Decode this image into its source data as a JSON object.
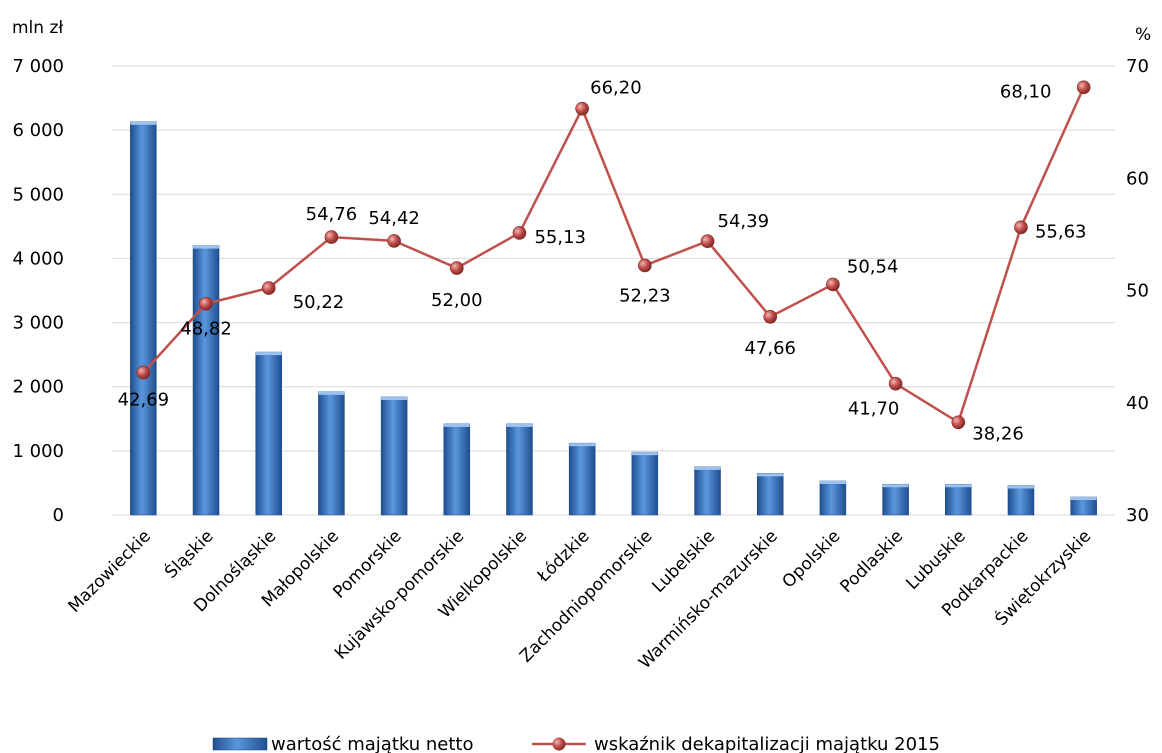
{
  "chart_data": {
    "type": "bar",
    "left_unit": "mln zł",
    "right_unit": "%",
    "categories": [
      "Mazowieckie",
      "Śląskie",
      "Dolnośląskie",
      "Małopolskie",
      "Pomorskie",
      "Kujawsko-pomorskie",
      "Wielkopolskie",
      "Łódzkie",
      "Zachodniopomorskie",
      "Lubelskie",
      "Warmińsko-mazurskie",
      "Opolskie",
      "Podlaskie",
      "Lubuskie",
      "Podkarpackie",
      "Świętokrzyskie"
    ],
    "series": [
      {
        "name": "wartość majątku netto",
        "type": "bar",
        "axis": "left",
        "color": "#2e6fba",
        "values": [
          6130,
          4200,
          2540,
          1920,
          1840,
          1420,
          1420,
          1120,
          980,
          750,
          650,
          530,
          480,
          480,
          460,
          280
        ]
      },
      {
        "name": "wskaźnik dekapitalizacji majątku 2015",
        "type": "line",
        "axis": "right",
        "color": "#c0504d",
        "values": [
          42.69,
          48.82,
          50.22,
          54.76,
          54.42,
          52.0,
          55.13,
          66.2,
          52.23,
          54.39,
          47.66,
          50.54,
          41.7,
          38.26,
          55.63,
          68.1
        ],
        "labels": [
          "42,69",
          "48,82",
          "50,22",
          "54,76",
          "54,42",
          "52,00",
          "55,13",
          "66,20",
          "52,23",
          "54,39",
          "47,66",
          "50,54",
          "41,70",
          "38,26",
          "55,63",
          "68,10"
        ]
      }
    ],
    "y_left": {
      "min": 0,
      "max": 7000,
      "ticks": [
        0,
        1000,
        2000,
        3000,
        4000,
        5000,
        6000,
        7000
      ],
      "tick_labels": [
        "0",
        "1 000",
        "2 000",
        "3 000",
        "4 000",
        "5 000",
        "6 000",
        "7 000"
      ]
    },
    "y_right": {
      "min": 30,
      "max": 70,
      "ticks": [
        30,
        40,
        50,
        60,
        70
      ],
      "tick_labels": [
        "30",
        "40",
        "50",
        "60",
        "70"
      ]
    },
    "grid": true,
    "legend_position": "bottom"
  }
}
